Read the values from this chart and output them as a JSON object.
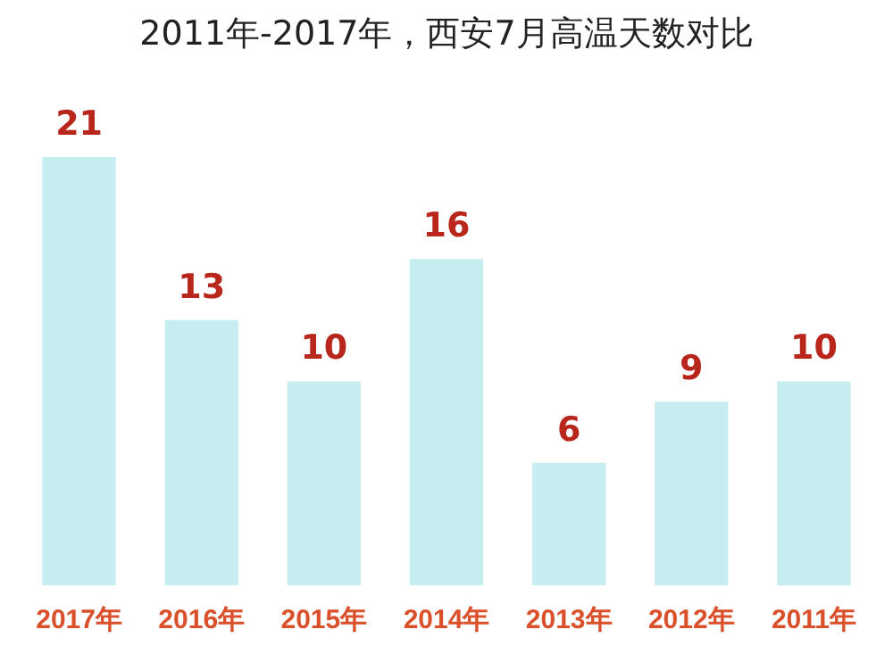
{
  "chart_data": {
    "type": "bar",
    "title": "2011年-2017年，西安7月高温天数对比",
    "categories": [
      "2017年",
      "2016年",
      "2015年",
      "2014年",
      "2013年",
      "2012年",
      "2011年"
    ],
    "values": [
      21,
      13,
      10,
      16,
      6,
      9,
      10
    ],
    "color": "#c6eef0",
    "data_labels": true
  }
}
